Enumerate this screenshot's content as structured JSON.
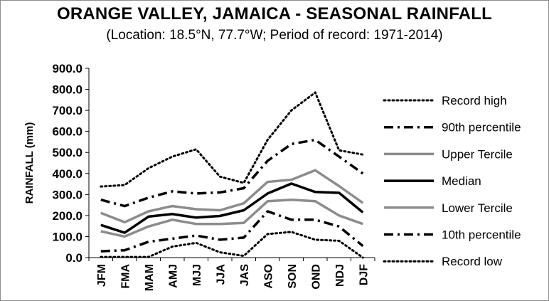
{
  "chart_data": {
    "type": "line",
    "title": "ORANGE VALLEY, JAMAICA - SEASONAL RAINFALL",
    "subtitle": "(Location: 18.5°N, 77.7°W; Period of record: 1971-2014)",
    "xlabel": "",
    "ylabel": "RAINFALL (mm)",
    "ylim": [
      0,
      900
    ],
    "ytick_step": 100,
    "ytick_labels": [
      "0.0",
      "100.0",
      "200.0",
      "300.0",
      "400.0",
      "500.0",
      "600.0",
      "700.0",
      "800.0",
      "900.0"
    ],
    "grid": false,
    "legend_position": "right",
    "categories": [
      "JFM",
      "FMA",
      "MAM",
      "AMJ",
      "MJJ",
      "JJA",
      "JAS",
      "ASO",
      "SON",
      "OND",
      "NDJ",
      "DJF"
    ],
    "series": [
      {
        "name": "Record high",
        "style": "dotted",
        "color": "#000000",
        "values": [
          338,
          345,
          425,
          480,
          515,
          385,
          355,
          560,
          700,
          785,
          510,
          490
        ]
      },
      {
        "name": "90th percentile",
        "style": "dashdot",
        "color": "#000000",
        "values": [
          275,
          245,
          285,
          315,
          305,
          310,
          330,
          460,
          540,
          560,
          480,
          400
        ]
      },
      {
        "name": "Upper Tercile",
        "style": "solid",
        "color": "#8c8c8c",
        "values": [
          212,
          168,
          220,
          245,
          230,
          225,
          258,
          360,
          370,
          415,
          340,
          260
        ]
      },
      {
        "name": "Median",
        "style": "solid-bold",
        "color": "#000000",
        "values": [
          155,
          118,
          195,
          207,
          190,
          198,
          225,
          305,
          352,
          312,
          308,
          215
        ]
      },
      {
        "name": "Lower Tercile",
        "style": "solid",
        "color": "#8c8c8c",
        "values": [
          125,
          100,
          148,
          180,
          160,
          160,
          165,
          268,
          275,
          268,
          200,
          160
        ]
      },
      {
        "name": "10th percentile",
        "style": "dashdot",
        "color": "#000000",
        "values": [
          30,
          35,
          75,
          90,
          105,
          85,
          95,
          220,
          180,
          180,
          148,
          55
        ]
      },
      {
        "name": "Record low",
        "style": "dotted",
        "color": "#000000",
        "values": [
          3,
          3,
          3,
          52,
          70,
          25,
          8,
          112,
          122,
          85,
          80,
          0
        ]
      }
    ]
  }
}
